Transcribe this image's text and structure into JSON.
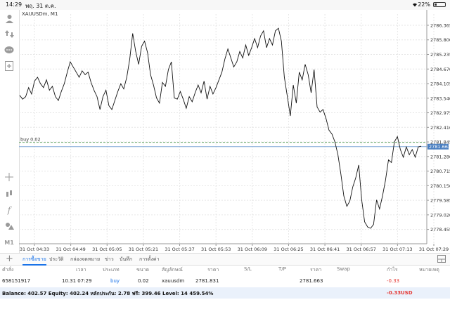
{
  "statusbar": {
    "time": "14:29",
    "date": "พฤ. 31 ต.ค.",
    "battery": "22%"
  },
  "chart": {
    "symbol_title": "XAUUSDm, M1",
    "order_line_label": "buy 0.02",
    "current_price_tag": "2781.663"
  },
  "chart_data": {
    "type": "line",
    "ylim": [
      2777.9,
      2786.8
    ],
    "y_ticks": [
      "2786.365",
      "2785.800",
      "2785.235",
      "2784.670",
      "2784.105",
      "2783.540",
      "2782.975",
      "2782.410",
      "2781.845",
      "2781.280",
      "2780.715",
      "2780.150",
      "2779.585",
      "2779.020",
      "2778.455"
    ],
    "x_ticks": [
      "31 Oct 04:33",
      "31 Oct 04:49",
      "31 Oct 05:05",
      "31 Oct 05:21",
      "31 Oct 05:37",
      "31 Oct 05:53",
      "31 Oct 06:09",
      "31 Oct 06:25",
      "31 Oct 06:41",
      "31 Oct 06:57",
      "31 Oct 07:13",
      "31 Oct 07:29"
    ],
    "order_price": 2781.831,
    "current_price": 2781.663,
    "series": [
      {
        "values": [
          2783.65,
          2783.5,
          2783.6,
          2783.95,
          2783.7,
          2784.2,
          2784.35,
          2784.1,
          2783.95,
          2784.25,
          2783.85,
          2784.0,
          2783.6,
          2783.45,
          2783.8,
          2784.1,
          2784.55,
          2784.95,
          2784.75,
          2784.55,
          2784.35,
          2784.6,
          2784.45,
          2784.55,
          2784.15,
          2783.85,
          2783.6,
          2783.1,
          2783.6,
          2783.85,
          2783.25,
          2783.1,
          2783.45,
          2783.8,
          2784.1,
          2783.9,
          2784.35,
          2785.05,
          2786.05,
          2785.35,
          2784.85,
          2785.55,
          2785.75,
          2785.3,
          2784.45,
          2784.05,
          2783.55,
          2783.35,
          2784.15,
          2784.0,
          2784.65,
          2784.95,
          2783.55,
          2783.5,
          2783.8,
          2783.5,
          2783.15,
          2783.6,
          2783.4,
          2783.75,
          2784.05,
          2783.75,
          2784.2,
          2783.5,
          2784.0,
          2783.7,
          2783.95,
          2784.25,
          2784.55,
          2785.05,
          2785.45,
          2785.1,
          2784.75,
          2784.95,
          2785.35,
          2785.1,
          2785.6,
          2785.2,
          2785.5,
          2785.85,
          2785.5,
          2785.95,
          2786.15,
          2785.5,
          2785.85,
          2785.6,
          2786.15,
          2786.25,
          2785.75,
          2784.35,
          2783.6,
          2782.85,
          2784.05,
          2783.35,
          2784.55,
          2784.25,
          2784.85,
          2784.45,
          2783.75,
          2784.65,
          2783.2,
          2783.0,
          2783.1,
          2782.75,
          2782.3,
          2782.15,
          2781.85,
          2781.35,
          2780.6,
          2779.75,
          2779.35,
          2779.55,
          2780.1,
          2780.45,
          2780.95,
          2779.6,
          2778.75,
          2778.55,
          2778.5,
          2778.65,
          2779.6,
          2779.25,
          2779.75,
          2780.35,
          2781.15,
          2781.05,
          2781.85,
          2782.05,
          2781.55,
          2781.25,
          2781.65,
          2781.35,
          2781.55,
          2781.25,
          2781.65,
          2781.68
        ]
      }
    ]
  },
  "tabs": [
    {
      "label": "การซื้อขาย",
      "active": true
    },
    {
      "label": "ประวัติ"
    },
    {
      "label": "กล่องจดหมาย"
    },
    {
      "label": "ข่าว"
    },
    {
      "label": "บันทึก"
    },
    {
      "label": "การตั้งค่า"
    }
  ],
  "table": {
    "headers": {
      "order": "คำสั่ง",
      "time": "เวลา",
      "type": "ประเภท",
      "volume": "ขนาด",
      "symbol": "สัญลักษณ์",
      "price": "ราคา",
      "sl": "S/L",
      "tp": "T/P",
      "cur_price": "ราคา",
      "swap": "Swap",
      "profit": "กำไร",
      "comment": "หมายเหตุ"
    },
    "row": {
      "order": "658151917",
      "time": "10.31 07:29",
      "type": "buy",
      "volume": "0.02",
      "symbol": "xauusdm",
      "price": "2781.831",
      "cur_price": "2781.663",
      "profit": "-0.33"
    },
    "balance_text": "Balance: 402.57 Equity: 402.24 หลักประกัน: 2.78 ฟรี: 399.46 Level: 14 459.54%",
    "total_profit": "-0.33",
    "currency": "USD"
  }
}
